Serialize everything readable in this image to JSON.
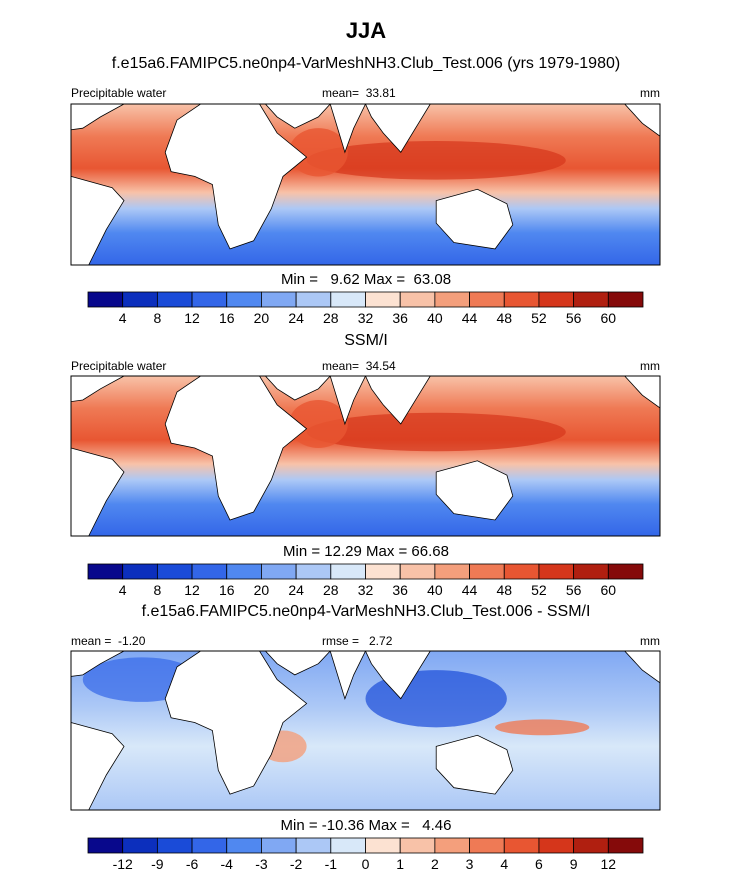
{
  "title": "JJA",
  "panels": [
    {
      "title": "f.e15a6.FAMIPC5.ne0np4-VarMeshNH3.Club_Test.006 (yrs 1979-1980)",
      "left_label": "Precipitable water",
      "center_label": "mean=  33.81",
      "right_label": "mm",
      "stats": "Min =   9.62 Max =  63.08",
      "colorbar": {
        "levels": [
          4,
          8,
          12,
          16,
          20,
          24,
          28,
          32,
          36,
          40,
          44,
          48,
          52,
          56,
          60
        ],
        "colors": [
          "#08088c",
          "#0c2fbd",
          "#1a4bd8",
          "#3366e8",
          "#5088f0",
          "#80a8f3",
          "#acc8f6",
          "#d8e8f9",
          "#fce2d2",
          "#f8c2a8",
          "#f49f7c",
          "#ef7a55",
          "#e85632",
          "#d5361b",
          "#b01f10",
          "#850a0a"
        ]
      }
    },
    {
      "title": "SSM/I",
      "left_label": "Precipitable water",
      "center_label": "mean=  34.54",
      "right_label": "mm",
      "stats": "Min = 12.29 Max = 66.68",
      "colorbar": {
        "levels": [
          4,
          8,
          12,
          16,
          20,
          24,
          28,
          32,
          36,
          40,
          44,
          48,
          52,
          56,
          60
        ],
        "colors": [
          "#08088c",
          "#0c2fbd",
          "#1a4bd8",
          "#3366e8",
          "#5088f0",
          "#80a8f3",
          "#acc8f6",
          "#d8e8f9",
          "#fce2d2",
          "#f8c2a8",
          "#f49f7c",
          "#ef7a55",
          "#e85632",
          "#d5361b",
          "#b01f10",
          "#850a0a"
        ]
      }
    },
    {
      "title": "f.e15a6.FAMIPC5.ne0np4-VarMeshNH3.Club_Test.006 - SSM/I",
      "left_label": "mean =  -1.20",
      "center_label": "rmse =   2.72",
      "right_label": "mm",
      "stats": "Min = -10.36 Max =   4.46",
      "colorbar": {
        "levels": [
          -12,
          -9,
          -6,
          -4,
          -3,
          -2,
          -1,
          0,
          1,
          2,
          3,
          4,
          6,
          9,
          12
        ],
        "colors": [
          "#08088c",
          "#0c2fbd",
          "#1a4bd8",
          "#3366e8",
          "#5088f0",
          "#80a8f3",
          "#acc8f6",
          "#d8e8f9",
          "#fce2d2",
          "#f8c2a8",
          "#f49f7c",
          "#ef7a55",
          "#e85632",
          "#d5361b",
          "#b01f10",
          "#850a0a"
        ]
      }
    }
  ]
}
